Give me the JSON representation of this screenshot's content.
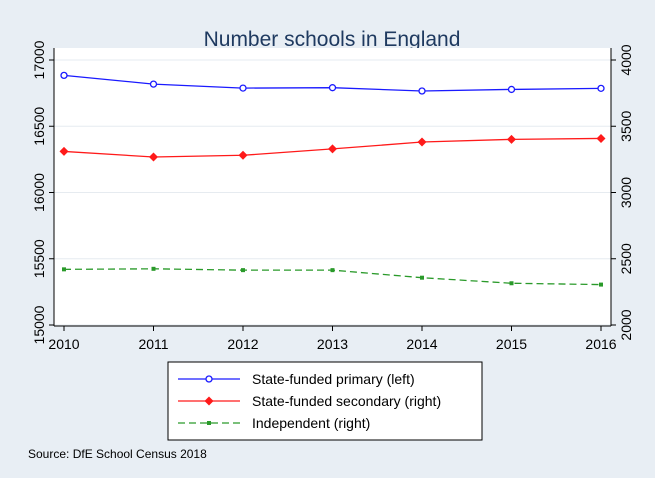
{
  "chart_data": {
    "type": "line",
    "title": "Number schools in England",
    "x": [
      2010,
      2011,
      2012,
      2013,
      2014,
      2015,
      2016
    ],
    "xlim": [
      2010,
      2016
    ],
    "y_left": {
      "ylim": [
        15000,
        17000
      ],
      "ticks": [
        "15000",
        "15500",
        "16000",
        "16500",
        "17000"
      ]
    },
    "y_right": {
      "ylim": [
        2000,
        4000
      ],
      "ticks": [
        "2000",
        "2500",
        "3000",
        "3500",
        "4000"
      ]
    },
    "x_ticks": [
      "2010",
      "2011",
      "2012",
      "2013",
      "2014",
      "2015",
      "2016"
    ],
    "series": [
      {
        "name": "State-funded primary (left)",
        "axis": "left",
        "color": "#1a1aff",
        "marker": "circle",
        "dash": "solid",
        "values": [
          16884,
          16818,
          16788,
          16791,
          16766,
          16778,
          16786
        ]
      },
      {
        "name": "State-funded secondary (right)",
        "axis": "right",
        "color": "#ff1a1a",
        "marker": "diamond",
        "dash": "solid",
        "values": [
          3310,
          3268,
          3281,
          3329,
          3381,
          3401,
          3408
        ]
      },
      {
        "name": "Independent (right)",
        "axis": "right",
        "color": "#2a9a2a",
        "marker": "square",
        "dash": "dashed",
        "values": [
          2420,
          2424,
          2414,
          2414,
          2357,
          2315,
          2305
        ]
      }
    ],
    "grid": true,
    "legend_position": "bottom",
    "source": "Source: DfE School Census 2018",
    "colors": {
      "background": "#e8eef4",
      "plot": "#ffffff",
      "grid": "#e6ebf0"
    }
  }
}
